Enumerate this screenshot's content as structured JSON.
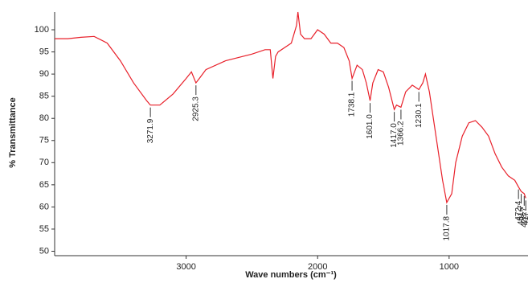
{
  "chart_data": {
    "type": "line",
    "xlabel": "Wave numbers (cm⁻¹)",
    "ylabel": "% Transmittance",
    "color": "#e8202a",
    "xlim": [
      4000,
      400
    ],
    "ylim": [
      49,
      104
    ],
    "xticks": [
      3000,
      2000,
      1000
    ],
    "yticks": [
      50,
      55,
      60,
      65,
      70,
      75,
      80,
      85,
      90,
      95,
      100
    ],
    "x": [
      4000,
      3900,
      3800,
      3700,
      3600,
      3500,
      3400,
      3300,
      3271.9,
      3200,
      3100,
      3000,
      2960,
      2925.3,
      2900,
      2850,
      2700,
      2500,
      2400,
      2360,
      2340,
      2320,
      2300,
      2200,
      2160,
      2150,
      2130,
      2100,
      2050,
      2000,
      1950,
      1900,
      1850,
      1800,
      1760,
      1738.1,
      1700,
      1660,
      1630,
      1601.0,
      1580,
      1540,
      1500,
      1460,
      1417.0,
      1400,
      1366.2,
      1330,
      1280,
      1230.1,
      1200,
      1180,
      1150,
      1100,
      1050,
      1017.8,
      980,
      950,
      900,
      850,
      800,
      750,
      700,
      650,
      600,
      550,
      500,
      472.4,
      451.7,
      428.7,
      417
    ],
    "values": [
      98,
      98,
      98.3,
      98.5,
      97,
      93,
      88,
      84,
      83,
      83,
      85.5,
      89,
      90.5,
      88,
      89,
      91,
      93,
      94.5,
      95.5,
      95.5,
      89,
      94,
      95,
      97,
      101,
      104,
      99,
      98,
      98,
      100,
      99,
      97,
      97,
      96,
      93,
      89,
      92,
      91,
      88,
      84,
      88,
      91,
      90.5,
      87,
      82,
      83,
      82.5,
      86,
      87.5,
      86.5,
      88,
      90,
      86,
      76,
      66,
      61,
      63,
      70,
      76,
      79,
      79.5,
      78,
      76,
      72,
      69,
      67,
      66,
      64.5,
      63.5,
      63,
      62
    ],
    "annotations": [
      {
        "value": 3271.9,
        "label": "3271.9"
      },
      {
        "value": 2925.3,
        "label": "2925.3"
      },
      {
        "value": 1738.1,
        "label": "1738.1"
      },
      {
        "value": 1601,
        "label": "1601.0"
      },
      {
        "value": 1417,
        "label": "1417.0"
      },
      {
        "value": 1366.2,
        "label": "1366.2"
      },
      {
        "value": 1230.1,
        "label": "1230.1"
      },
      {
        "value": 1017.8,
        "label": "1017.8"
      },
      {
        "value": 472.4,
        "label": "472.4"
      },
      {
        "value": 451.7,
        "label": "451.7"
      },
      {
        "value": 428.7,
        "label": "428.7"
      },
      {
        "value": 417,
        "label": "417"
      }
    ]
  }
}
